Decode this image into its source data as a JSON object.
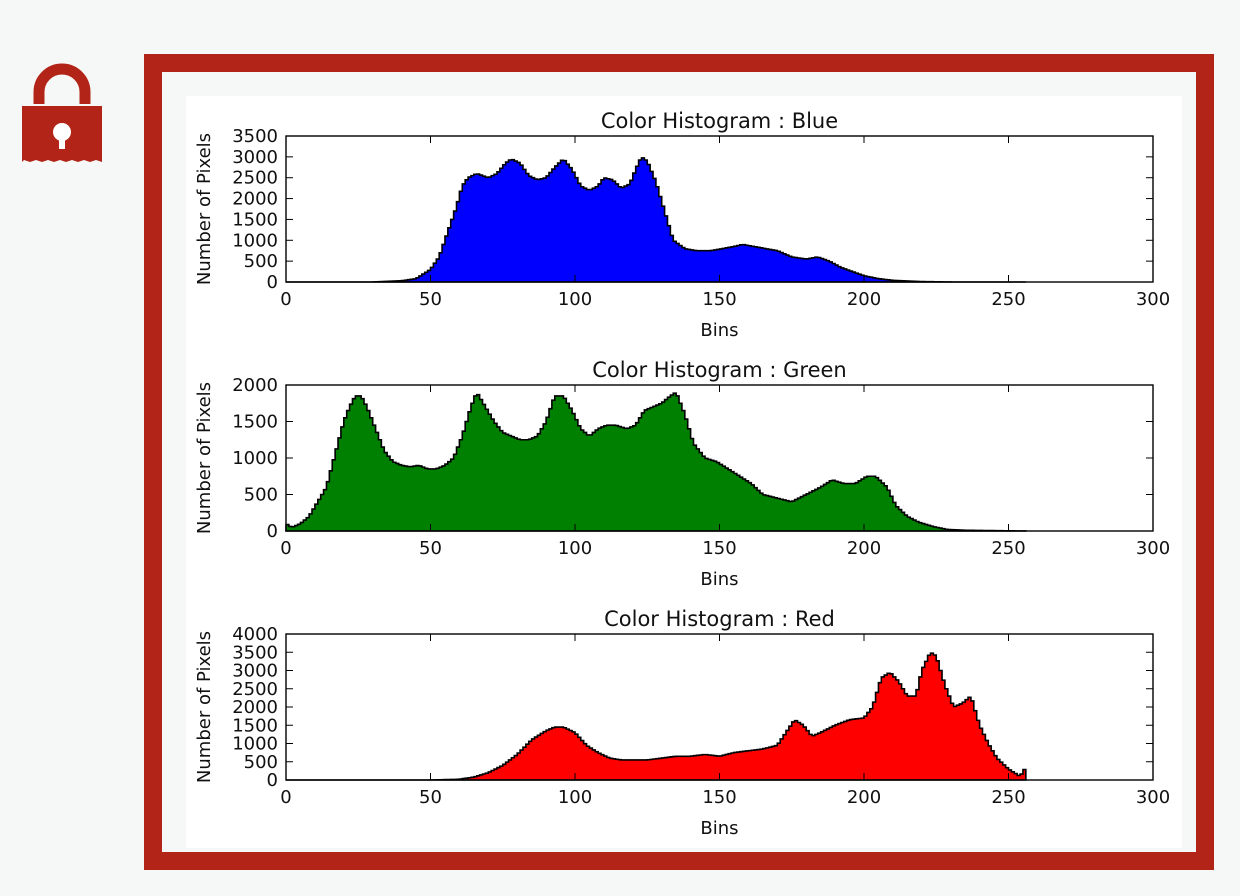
{
  "page": {
    "frame_color": "#b22418",
    "icon": "lock-icon"
  },
  "chart_data": [
    {
      "type": "area",
      "title": "Color Histogram : Blue",
      "xlabel": "Bins",
      "ylabel": "Number of Pixels",
      "color": "#0000ff",
      "xlim": [
        0,
        300
      ],
      "ylim": [
        0,
        3500
      ],
      "xticks": [
        0,
        50,
        100,
        150,
        200,
        250,
        300
      ],
      "yticks": [
        0,
        500,
        1000,
        1500,
        2000,
        2500,
        3000,
        3500
      ],
      "points": [
        [
          0,
          0
        ],
        [
          30,
          0
        ],
        [
          40,
          30
        ],
        [
          45,
          80
        ],
        [
          50,
          300
        ],
        [
          53,
          600
        ],
        [
          56,
          1200
        ],
        [
          59,
          1800
        ],
        [
          61,
          2300
        ],
        [
          63,
          2500
        ],
        [
          66,
          2600
        ],
        [
          70,
          2500
        ],
        [
          73,
          2600
        ],
        [
          76,
          2850
        ],
        [
          78,
          2950
        ],
        [
          81,
          2850
        ],
        [
          84,
          2550
        ],
        [
          87,
          2450
        ],
        [
          90,
          2500
        ],
        [
          93,
          2750
        ],
        [
          96,
          2950
        ],
        [
          99,
          2700
        ],
        [
          102,
          2300
        ],
        [
          105,
          2200
        ],
        [
          108,
          2300
        ],
        [
          110,
          2500
        ],
        [
          113,
          2450
        ],
        [
          116,
          2250
        ],
        [
          119,
          2350
        ],
        [
          121,
          2700
        ],
        [
          123,
          3000
        ],
        [
          125,
          2900
        ],
        [
          128,
          2400
        ],
        [
          131,
          1700
        ],
        [
          134,
          1000
        ],
        [
          138,
          800
        ],
        [
          142,
          750
        ],
        [
          147,
          750
        ],
        [
          151,
          800
        ],
        [
          155,
          850
        ],
        [
          158,
          900
        ],
        [
          162,
          850
        ],
        [
          166,
          800
        ],
        [
          170,
          750
        ],
        [
          175,
          600
        ],
        [
          180,
          550
        ],
        [
          184,
          600
        ],
        [
          188,
          500
        ],
        [
          192,
          350
        ],
        [
          196,
          250
        ],
        [
          200,
          150
        ],
        [
          205,
          80
        ],
        [
          210,
          40
        ],
        [
          220,
          10
        ],
        [
          230,
          0
        ],
        [
          256,
          0
        ]
      ]
    },
    {
      "type": "area",
      "title": "Color Histogram : Green",
      "xlabel": "Bins",
      "ylabel": "Number of Pixels",
      "color": "#008000",
      "xlim": [
        0,
        300
      ],
      "ylim": [
        0,
        2000
      ],
      "xticks": [
        0,
        50,
        100,
        150,
        200,
        250,
        300
      ],
      "yticks": [
        0,
        500,
        1000,
        1500,
        2000
      ],
      "points": [
        [
          0,
          100
        ],
        [
          2,
          50
        ],
        [
          5,
          100
        ],
        [
          8,
          200
        ],
        [
          11,
          400
        ],
        [
          14,
          600
        ],
        [
          16,
          900
        ],
        [
          18,
          1200
        ],
        [
          20,
          1500
        ],
        [
          22,
          1700
        ],
        [
          24,
          1850
        ],
        [
          26,
          1850
        ],
        [
          28,
          1700
        ],
        [
          31,
          1400
        ],
        [
          34,
          1100
        ],
        [
          37,
          950
        ],
        [
          40,
          900
        ],
        [
          43,
          880
        ],
        [
          46,
          900
        ],
        [
          49,
          850
        ],
        [
          52,
          850
        ],
        [
          55,
          900
        ],
        [
          58,
          1000
        ],
        [
          61,
          1300
        ],
        [
          64,
          1700
        ],
        [
          66,
          1900
        ],
        [
          69,
          1700
        ],
        [
          72,
          1500
        ],
        [
          75,
          1350
        ],
        [
          78,
          1300
        ],
        [
          81,
          1250
        ],
        [
          84,
          1250
        ],
        [
          87,
          1300
        ],
        [
          90,
          1500
        ],
        [
          93,
          1850
        ],
        [
          96,
          1850
        ],
        [
          99,
          1650
        ],
        [
          102,
          1400
        ],
        [
          105,
          1300
        ],
        [
          108,
          1400
        ],
        [
          111,
          1450
        ],
        [
          114,
          1450
        ],
        [
          118,
          1400
        ],
        [
          121,
          1450
        ],
        [
          124,
          1650
        ],
        [
          127,
          1700
        ],
        [
          130,
          1750
        ],
        [
          133,
          1850
        ],
        [
          135,
          1900
        ],
        [
          138,
          1600
        ],
        [
          141,
          1200
        ],
        [
          145,
          1000
        ],
        [
          149,
          950
        ],
        [
          153,
          850
        ],
        [
          157,
          750
        ],
        [
          161,
          650
        ],
        [
          165,
          500
        ],
        [
          170,
          450
        ],
        [
          175,
          400
        ],
        [
          180,
          500
        ],
        [
          185,
          600
        ],
        [
          189,
          700
        ],
        [
          193,
          650
        ],
        [
          197,
          650
        ],
        [
          201,
          750
        ],
        [
          204,
          750
        ],
        [
          208,
          600
        ],
        [
          211,
          350
        ],
        [
          215,
          200
        ],
        [
          219,
          120
        ],
        [
          224,
          60
        ],
        [
          229,
          20
        ],
        [
          235,
          10
        ],
        [
          256,
          0
        ]
      ]
    },
    {
      "type": "area",
      "title": "Color Histogram : Red",
      "xlabel": "Bins",
      "ylabel": "Number of Pixels",
      "color": "#ff0000",
      "xlim": [
        0,
        300
      ],
      "ylim": [
        0,
        4000
      ],
      "xticks": [
        0,
        50,
        100,
        150,
        200,
        250,
        300
      ],
      "yticks": [
        0,
        500,
        1000,
        1500,
        2000,
        2500,
        3000,
        3500,
        4000
      ],
      "points": [
        [
          0,
          0
        ],
        [
          50,
          0
        ],
        [
          60,
          20
        ],
        [
          65,
          80
        ],
        [
          70,
          200
        ],
        [
          75,
          400
        ],
        [
          80,
          700
        ],
        [
          85,
          1100
        ],
        [
          90,
          1350
        ],
        [
          93,
          1450
        ],
        [
          96,
          1450
        ],
        [
          100,
          1300
        ],
        [
          104,
          950
        ],
        [
          108,
          750
        ],
        [
          112,
          600
        ],
        [
          116,
          550
        ],
        [
          120,
          550
        ],
        [
          125,
          550
        ],
        [
          130,
          600
        ],
        [
          135,
          650
        ],
        [
          140,
          650
        ],
        [
          145,
          700
        ],
        [
          150,
          650
        ],
        [
          155,
          750
        ],
        [
          160,
          800
        ],
        [
          165,
          850
        ],
        [
          170,
          950
        ],
        [
          173,
          1300
        ],
        [
          176,
          1650
        ],
        [
          179,
          1500
        ],
        [
          182,
          1200
        ],
        [
          185,
          1300
        ],
        [
          190,
          1500
        ],
        [
          195,
          1650
        ],
        [
          200,
          1700
        ],
        [
          203,
          2000
        ],
        [
          206,
          2800
        ],
        [
          209,
          2950
        ],
        [
          212,
          2700
        ],
        [
          215,
          2300
        ],
        [
          218,
          2300
        ],
        [
          220,
          3000
        ],
        [
          223,
          3500
        ],
        [
          225,
          3400
        ],
        [
          228,
          2600
        ],
        [
          231,
          2000
        ],
        [
          234,
          2100
        ],
        [
          237,
          2300
        ],
        [
          240,
          1500
        ],
        [
          243,
          1000
        ],
        [
          246,
          600
        ],
        [
          250,
          300
        ],
        [
          254,
          100
        ],
        [
          256,
          350
        ]
      ]
    }
  ]
}
